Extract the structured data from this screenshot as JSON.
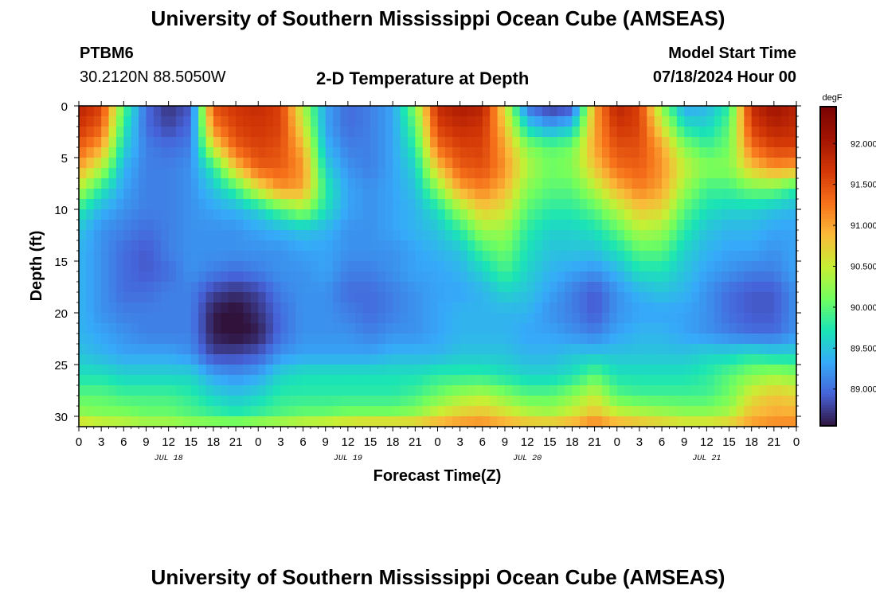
{
  "header": {
    "title": "University of Southern Mississippi Ocean Cube (AMSEAS)",
    "station": "PTBM6",
    "coords": "30.2120N  88.5050W",
    "subtitle": "2-D Temperature at Depth",
    "model_start_label": "Model Start Time",
    "model_start_value": "07/18/2024 Hour 00"
  },
  "footer": {
    "title": "University of Southern Mississippi Ocean Cube (AMSEAS)"
  },
  "chart_data": {
    "type": "heatmap",
    "title": "2-D Temperature at Depth",
    "xlabel": "Forecast Time(Z)",
    "ylabel": "Depth (ft)",
    "xlim": [
      0,
      96
    ],
    "ylim": [
      31,
      0
    ],
    "x_ticks": [
      0,
      3,
      6,
      9,
      12,
      15,
      18,
      21,
      24,
      27,
      30,
      33,
      36,
      39,
      42,
      45,
      48,
      51,
      54,
      57,
      60,
      63,
      66,
      69,
      72,
      75,
      78,
      81,
      84,
      87,
      90,
      93,
      96
    ],
    "x_tick_labels": [
      "0",
      "3",
      "6",
      "9",
      "12",
      "15",
      "18",
      "21",
      "0",
      "3",
      "6",
      "9",
      "12",
      "15",
      "18",
      "21",
      "0",
      "3",
      "6",
      "9",
      "12",
      "15",
      "18",
      "21",
      "0",
      "3",
      "6",
      "9",
      "12",
      "15",
      "18",
      "21",
      "0"
    ],
    "date_labels": [
      {
        "x": 12,
        "label": "JUL 18"
      },
      {
        "x": 36,
        "label": "JUL 19"
      },
      {
        "x": 60,
        "label": "JUL 20"
      },
      {
        "x": 84,
        "label": "JUL 21"
      }
    ],
    "y_ticks": [
      0,
      5,
      10,
      15,
      20,
      25,
      30
    ],
    "colorbar": {
      "unit": "degF",
      "min": 88.55,
      "max": 92.45,
      "ticks": [
        89.0,
        89.5,
        90.0,
        90.5,
        91.0,
        91.5,
        92.0
      ],
      "tick_labels": [
        "89.000",
        "89.500",
        "90.000",
        "90.500",
        "91.000",
        "91.500",
        "92.000"
      ]
    },
    "grid": false,
    "description_of_field": {
      "depths_ft": [
        0,
        2,
        4,
        6,
        8,
        10,
        12,
        14,
        16,
        18,
        20,
        22,
        24,
        26,
        28,
        30,
        31
      ],
      "hours": [
        0,
        3,
        6,
        9,
        12,
        15,
        18,
        21,
        24,
        27,
        30,
        33,
        36,
        39,
        42,
        45,
        48,
        51,
        54,
        57,
        60,
        63,
        66,
        69,
        72,
        75,
        78,
        81,
        84,
        87,
        90,
        93,
        96
      ],
      "temperature_degF_rows": [
        [
          91.9,
          91.6,
          90.0,
          89.0,
          88.7,
          88.9,
          91.5,
          91.7,
          91.8,
          91.6,
          90.4,
          89.3,
          89.0,
          89.1,
          89.3,
          90.2,
          91.8,
          92.0,
          91.9,
          90.6,
          89.0,
          88.7,
          88.8,
          91.0,
          91.9,
          91.6,
          90.2,
          89.3,
          89.4,
          89.8,
          91.8,
          92.1,
          91.9
        ],
        [
          91.7,
          91.4,
          89.8,
          89.0,
          88.8,
          89.0,
          91.2,
          91.6,
          91.7,
          91.6,
          90.6,
          89.3,
          89.0,
          89.1,
          89.3,
          90.0,
          91.6,
          91.8,
          91.7,
          90.8,
          89.6,
          89.3,
          89.5,
          91.0,
          91.7,
          91.6,
          90.6,
          89.7,
          89.6,
          90.0,
          91.6,
          91.9,
          91.8
        ],
        [
          91.4,
          91.0,
          89.6,
          89.1,
          89.0,
          89.1,
          90.6,
          91.4,
          91.6,
          91.5,
          90.9,
          89.4,
          89.1,
          89.1,
          89.3,
          89.8,
          91.3,
          91.6,
          91.6,
          91.0,
          90.2,
          90.0,
          90.1,
          91.0,
          91.5,
          91.5,
          91.0,
          90.2,
          89.9,
          90.1,
          91.3,
          91.6,
          91.6
        ],
        [
          91.0,
          90.4,
          89.4,
          89.1,
          89.1,
          89.2,
          89.8,
          90.8,
          91.4,
          91.4,
          91.1,
          89.6,
          89.2,
          89.1,
          89.3,
          89.6,
          90.8,
          91.4,
          91.5,
          91.1,
          90.4,
          90.1,
          90.2,
          90.8,
          91.3,
          91.4,
          91.1,
          90.5,
          90.2,
          90.2,
          90.8,
          91.1,
          91.0
        ],
        [
          90.4,
          89.8,
          89.3,
          89.1,
          89.1,
          89.2,
          89.5,
          89.9,
          90.6,
          91.1,
          91.0,
          89.8,
          89.3,
          89.2,
          89.3,
          89.5,
          90.2,
          91.0,
          91.2,
          90.9,
          90.2,
          90.0,
          90.0,
          90.4,
          90.9,
          91.2,
          91.0,
          90.3,
          89.9,
          89.9,
          90.1,
          90.1,
          89.8
        ],
        [
          89.8,
          89.4,
          89.2,
          89.1,
          89.1,
          89.2,
          89.3,
          89.4,
          89.6,
          90.0,
          90.3,
          89.7,
          89.3,
          89.2,
          89.3,
          89.4,
          89.7,
          90.3,
          90.8,
          90.6,
          90.0,
          89.8,
          89.8,
          90.0,
          90.4,
          90.8,
          90.7,
          90.0,
          89.7,
          89.6,
          89.6,
          89.5,
          89.4
        ],
        [
          89.5,
          89.2,
          89.1,
          89.0,
          89.1,
          89.2,
          89.2,
          89.2,
          89.3,
          89.4,
          89.5,
          89.4,
          89.2,
          89.2,
          89.3,
          89.4,
          89.5,
          89.8,
          90.3,
          90.3,
          89.8,
          89.6,
          89.6,
          89.7,
          90.0,
          90.4,
          90.3,
          89.8,
          89.5,
          89.4,
          89.4,
          89.3,
          89.3
        ],
        [
          89.4,
          89.2,
          89.0,
          88.9,
          89.1,
          89.2,
          89.2,
          89.2,
          89.2,
          89.2,
          89.3,
          89.3,
          89.2,
          89.2,
          89.2,
          89.3,
          89.4,
          89.5,
          89.9,
          90.1,
          89.7,
          89.5,
          89.5,
          89.5,
          89.7,
          90.0,
          90.0,
          89.6,
          89.4,
          89.3,
          89.3,
          89.2,
          89.3
        ],
        [
          89.4,
          89.2,
          89.0,
          88.9,
          89.0,
          89.2,
          89.1,
          89.0,
          89.1,
          89.2,
          89.2,
          89.3,
          89.1,
          89.1,
          89.2,
          89.3,
          89.3,
          89.4,
          89.6,
          89.9,
          89.6,
          89.4,
          89.3,
          89.2,
          89.4,
          89.7,
          89.7,
          89.5,
          89.3,
          89.2,
          89.1,
          89.1,
          89.3
        ],
        [
          89.4,
          89.2,
          89.0,
          89.0,
          89.1,
          89.1,
          88.8,
          88.7,
          88.8,
          89.1,
          89.2,
          89.2,
          89.0,
          89.0,
          89.1,
          89.2,
          89.3,
          89.3,
          89.4,
          89.6,
          89.5,
          89.3,
          89.1,
          88.9,
          89.2,
          89.4,
          89.5,
          89.4,
          89.2,
          89.0,
          88.9,
          88.9,
          89.2
        ],
        [
          89.4,
          89.2,
          89.1,
          89.1,
          89.1,
          89.1,
          88.6,
          88.5,
          88.7,
          89.0,
          89.2,
          89.2,
          89.1,
          89.0,
          89.1,
          89.2,
          89.3,
          89.4,
          89.4,
          89.4,
          89.4,
          89.2,
          89.1,
          88.9,
          89.2,
          89.3,
          89.3,
          89.3,
          89.2,
          89.0,
          88.9,
          88.9,
          89.2
        ],
        [
          89.4,
          89.3,
          89.2,
          89.1,
          89.1,
          89.1,
          88.6,
          88.5,
          88.6,
          89.0,
          89.2,
          89.2,
          89.2,
          89.1,
          89.2,
          89.2,
          89.3,
          89.4,
          89.4,
          89.4,
          89.3,
          89.3,
          89.2,
          89.1,
          89.3,
          89.4,
          89.4,
          89.3,
          89.2,
          89.1,
          89.0,
          89.0,
          89.2
        ],
        [
          89.5,
          89.4,
          89.3,
          89.3,
          89.3,
          89.2,
          88.8,
          88.8,
          88.9,
          89.2,
          89.3,
          89.3,
          89.3,
          89.3,
          89.4,
          89.4,
          89.4,
          89.5,
          89.5,
          89.5,
          89.4,
          89.4,
          89.5,
          89.5,
          89.5,
          89.5,
          89.5,
          89.5,
          89.6,
          89.6,
          89.7,
          89.6,
          89.6
        ],
        [
          89.7,
          89.7,
          89.6,
          89.6,
          89.6,
          89.6,
          89.3,
          89.2,
          89.3,
          89.6,
          89.7,
          89.7,
          89.7,
          89.7,
          89.7,
          89.7,
          89.8,
          89.8,
          89.8,
          89.7,
          89.6,
          89.6,
          89.7,
          90.0,
          89.7,
          89.7,
          89.7,
          89.7,
          89.8,
          90.0,
          90.2,
          90.3,
          90.2
        ],
        [
          90.0,
          90.0,
          89.9,
          89.9,
          89.9,
          89.8,
          89.6,
          89.5,
          89.6,
          89.8,
          89.8,
          89.8,
          89.8,
          89.8,
          89.8,
          89.9,
          90.1,
          90.3,
          90.4,
          90.2,
          90.0,
          90.0,
          90.2,
          90.5,
          90.0,
          89.9,
          89.9,
          89.9,
          89.9,
          90.1,
          90.6,
          90.8,
          90.7
        ],
        [
          90.3,
          90.2,
          90.2,
          90.1,
          90.1,
          90.0,
          89.9,
          89.8,
          89.9,
          90.0,
          90.1,
          90.1,
          90.2,
          90.2,
          90.2,
          90.3,
          90.6,
          90.8,
          90.9,
          90.7,
          90.5,
          90.4,
          90.6,
          90.9,
          90.6,
          90.5,
          90.4,
          90.3,
          90.3,
          90.4,
          90.9,
          91.0,
          91.0
        ],
        [
          90.8,
          90.7,
          90.6,
          90.5,
          90.5,
          90.4,
          90.4,
          90.4,
          90.5,
          90.6,
          90.7,
          90.8,
          90.9,
          91.0,
          91.0,
          91.0,
          91.1,
          91.2,
          91.2,
          91.1,
          91.0,
          91.0,
          91.1,
          91.3,
          91.1,
          91.0,
          90.9,
          90.8,
          90.8,
          90.9,
          91.1,
          91.2,
          91.2
        ]
      ]
    }
  }
}
